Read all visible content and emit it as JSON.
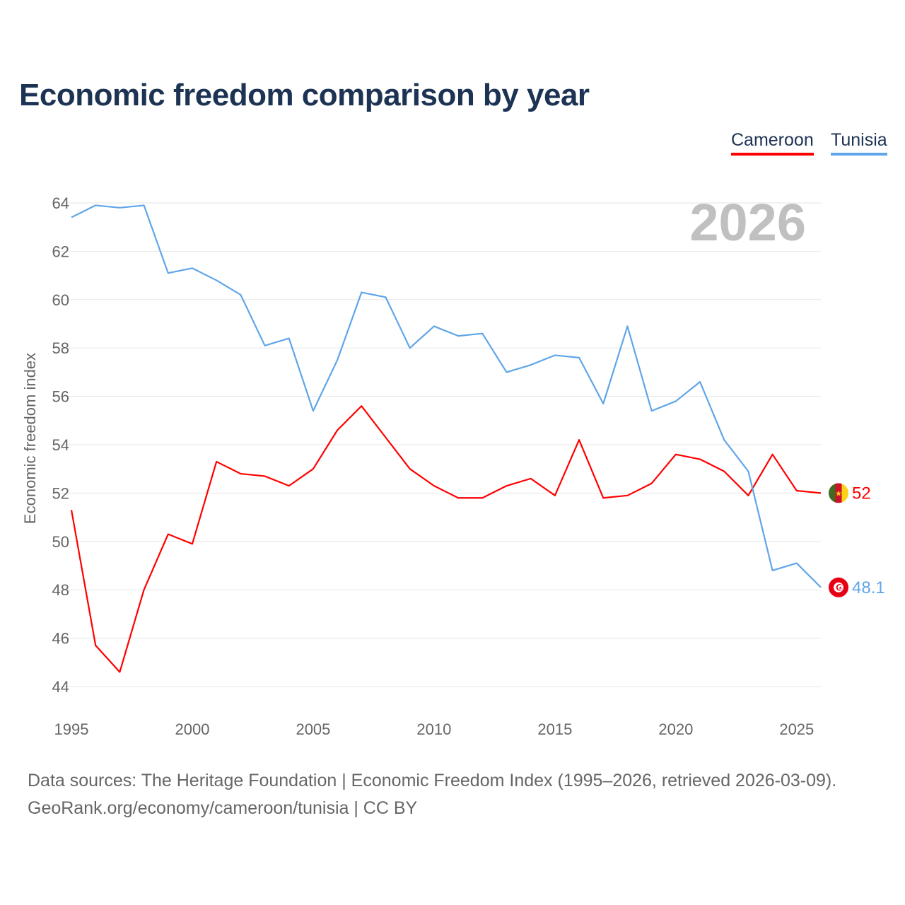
{
  "title": "Economic freedom comparison by year",
  "legend": [
    {
      "name": "Cameroon",
      "color": "#ff0000"
    },
    {
      "name": "Tunisia",
      "color": "#60a5e8"
    }
  ],
  "year_watermark": "2026",
  "footer": {
    "line1": "Data sources: The Heritage Foundation | Economic Freedom Index (1995–2026, retrieved 2026-03-09).",
    "line2": "GeoRank.org/economy/cameroon/tunisia | CC BY"
  },
  "chart_data": {
    "type": "line",
    "title": "Economic freedom comparison by year",
    "xlabel": "",
    "ylabel": "Economic freedom index",
    "xlim": [
      1995,
      2026
    ],
    "ylim": [
      44,
      64
    ],
    "x_ticks": [
      "1995",
      "2000",
      "2005",
      "2010",
      "2015",
      "2020",
      "2025"
    ],
    "y_ticks": [
      "44",
      "46",
      "48",
      "50",
      "52",
      "54",
      "56",
      "58",
      "60",
      "62",
      "64"
    ],
    "grid": true,
    "legend_position": "top-right",
    "x": [
      1995,
      1996,
      1997,
      1998,
      1999,
      2000,
      2001,
      2002,
      2003,
      2004,
      2005,
      2006,
      2007,
      2008,
      2009,
      2010,
      2011,
      2012,
      2013,
      2014,
      2015,
      2016,
      2017,
      2018,
      2019,
      2020,
      2021,
      2022,
      2023,
      2024,
      2025,
      2026
    ],
    "series": [
      {
        "name": "Cameroon",
        "color": "#ff0000",
        "end_label": "52",
        "flag": "cameroon-flag",
        "values": [
          51.3,
          45.7,
          44.6,
          48.0,
          50.3,
          49.9,
          53.3,
          52.8,
          52.7,
          52.3,
          53.0,
          54.6,
          55.6,
          54.3,
          53.0,
          52.3,
          51.8,
          51.8,
          52.3,
          52.6,
          51.9,
          54.2,
          51.8,
          51.9,
          52.4,
          53.6,
          53.4,
          52.9,
          51.9,
          53.6,
          52.1,
          52.0
        ]
      },
      {
        "name": "Tunisia",
        "color": "#60a5e8",
        "end_label": "48.1",
        "flag": "tunisia-flag",
        "values": [
          63.4,
          63.9,
          63.8,
          63.9,
          61.1,
          61.3,
          60.8,
          60.2,
          58.1,
          58.4,
          55.4,
          57.5,
          60.3,
          60.1,
          58.0,
          58.9,
          58.5,
          58.6,
          57.0,
          57.3,
          57.7,
          57.6,
          55.7,
          58.9,
          55.4,
          55.8,
          56.6,
          54.2,
          52.9,
          48.8,
          49.1,
          48.1
        ]
      }
    ]
  }
}
